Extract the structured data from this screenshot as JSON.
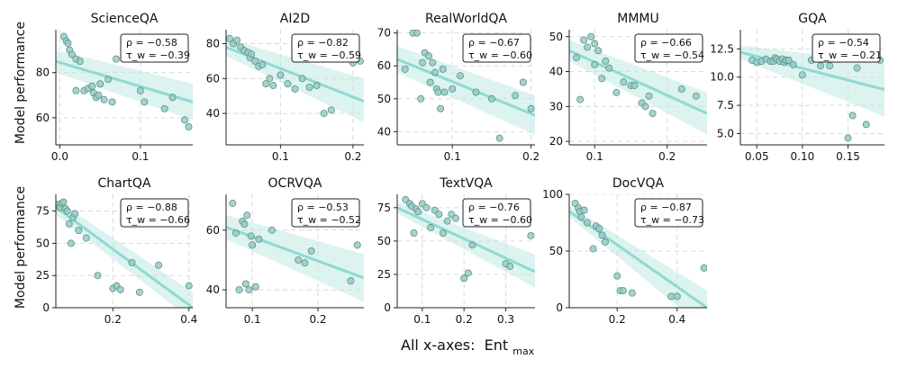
{
  "figure": {
    "xlabel": "All x-axes:",
    "xlabel_main": "Ent",
    "xlabel_sub": "max",
    "ylabel": "Model performance"
  },
  "colors": {
    "line": "#8fdad3",
    "band": "#bfe9e4",
    "point_fill": "#93ccc4",
    "point_edge": "#5f8f89",
    "grid": "#d9d9d9"
  },
  "chart_data": [
    {
      "type": "scatter",
      "title": "ScienceQA",
      "xlim": [
        -0.005,
        0.165
      ],
      "ylim": [
        48,
        99
      ],
      "xticks": [
        0.0,
        0.1
      ],
      "xticklabels": [
        "0.0",
        "0.1"
      ],
      "yticks": [
        60,
        80
      ],
      "yticklabels": [
        "60",
        "80"
      ],
      "rho": "ρ = −0.58",
      "tau": "τ_w = −0.39",
      "fit": [
        85,
        67
      ],
      "band": [
        [
          80,
          90
        ],
        [
          59,
          75
        ]
      ],
      "x": [
        0.005,
        0.008,
        0.01,
        0.012,
        0.015,
        0.02,
        0.025,
        0.03,
        0.035,
        0.04,
        0.042,
        0.045,
        0.048,
        0.05,
        0.055,
        0.06,
        0.065,
        0.07,
        0.02,
        0.1,
        0.105,
        0.13,
        0.14,
        0.155,
        0.16
      ],
      "y": [
        96,
        94,
        93,
        90,
        88,
        86,
        85,
        72,
        73,
        74,
        71,
        69,
        70,
        75,
        68,
        77,
        67,
        86,
        72,
        72,
        67,
        64,
        69,
        59,
        56
      ]
    },
    {
      "type": "scatter",
      "title": "AI2D",
      "xlim": [
        0.025,
        0.215
      ],
      "ylim": [
        22,
        88
      ],
      "xticks": [
        0.1,
        0.2
      ],
      "xticklabels": [
        "0.1",
        "0.2"
      ],
      "yticks": [
        40,
        60,
        80
      ],
      "yticklabels": [
        "40",
        "60",
        "80"
      ],
      "rho": "ρ = −0.82",
      "tau": "τ_w = −0.59",
      "fit": [
        78,
        47
      ],
      "band": [
        [
          73,
          83
        ],
        [
          35,
          60
        ]
      ],
      "x": [
        0.03,
        0.035,
        0.04,
        0.045,
        0.05,
        0.055,
        0.058,
        0.06,
        0.065,
        0.07,
        0.075,
        0.08,
        0.085,
        0.09,
        0.1,
        0.11,
        0.12,
        0.13,
        0.14,
        0.15,
        0.16,
        0.17,
        0.2,
        0.21
      ],
      "y": [
        83,
        80,
        82,
        78,
        76,
        75,
        72,
        74,
        70,
        67,
        68,
        57,
        60,
        56,
        62,
        57,
        54,
        60,
        55,
        56,
        40,
        42,
        69,
        70
      ]
    },
    {
      "type": "scatter",
      "title": "RealWorldQA",
      "xlim": [
        0.03,
        0.205
      ],
      "ylim": [
        36,
        71
      ],
      "xticks": [
        0.1,
        0.2
      ],
      "xticklabels": [
        "0.1",
        "0.2"
      ],
      "yticks": [
        40,
        50,
        60,
        70
      ],
      "yticklabels": [
        "40",
        "50",
        "60",
        "70"
      ],
      "rho": "ρ = −0.67",
      "tau": "τ_w = −0.60",
      "fit": [
        62,
        45
      ],
      "band": [
        [
          58,
          66
        ],
        [
          39,
          51
        ]
      ],
      "x": [
        0.04,
        0.05,
        0.055,
        0.06,
        0.062,
        0.065,
        0.07,
        0.072,
        0.075,
        0.078,
        0.08,
        0.082,
        0.085,
        0.088,
        0.09,
        0.1,
        0.11,
        0.13,
        0.15,
        0.16,
        0.18,
        0.19,
        0.2
      ],
      "y": [
        59,
        70,
        70,
        50,
        61,
        64,
        63,
        55,
        61,
        58,
        53,
        52,
        47,
        59,
        52,
        53,
        57,
        52,
        50,
        38,
        51,
        55,
        47
      ]
    },
    {
      "type": "scatter",
      "title": "MMMU",
      "xlim": [
        0.065,
        0.255
      ],
      "ylim": [
        19,
        52
      ],
      "xticks": [
        0.1,
        0.2
      ],
      "xticklabels": [
        "0.1",
        "0.2"
      ],
      "yticks": [
        20,
        30,
        40,
        50
      ],
      "yticklabels": [
        "20",
        "30",
        "40",
        "50"
      ],
      "rho": "ρ = −0.66",
      "tau": "τ_w = −0.54",
      "fit": [
        46,
        28
      ],
      "band": [
        [
          43,
          49
        ],
        [
          22,
          34
        ]
      ],
      "x": [
        0.075,
        0.08,
        0.085,
        0.09,
        0.095,
        0.1,
        0.1,
        0.105,
        0.11,
        0.115,
        0.12,
        0.13,
        0.14,
        0.15,
        0.155,
        0.16,
        0.165,
        0.17,
        0.175,
        0.18,
        0.2,
        0.22,
        0.24
      ],
      "y": [
        44,
        32,
        49,
        47,
        50,
        48,
        42,
        46,
        38,
        43,
        41,
        34,
        37,
        36,
        36,
        44,
        31,
        30,
        33,
        28,
        44,
        35,
        33
      ]
    },
    {
      "type": "scatter",
      "title": "GQA",
      "xlim": [
        0.032,
        0.19
      ],
      "ylim": [
        4,
        14.2
      ],
      "xticks": [
        0.05,
        0.1,
        0.15
      ],
      "xticklabels": [
        "0.05",
        "0.10",
        "0.15"
      ],
      "yticks": [
        5.0,
        7.5,
        10.0,
        12.5
      ],
      "yticklabels": [
        "5.0",
        "7.5",
        "10.0",
        "12.5"
      ],
      "rho": "ρ = −0.54",
      "tau": "τ_w = −0.21",
      "fit": [
        12.2,
        8.9
      ],
      "band": [
        [
          11.6,
          12.8
        ],
        [
          6.5,
          11.3
        ]
      ],
      "x": [
        0.045,
        0.05,
        0.055,
        0.06,
        0.065,
        0.068,
        0.07,
        0.072,
        0.075,
        0.078,
        0.08,
        0.082,
        0.085,
        0.09,
        0.1,
        0.11,
        0.12,
        0.13,
        0.14,
        0.15,
        0.155,
        0.16,
        0.17,
        0.18,
        0.185
      ],
      "y": [
        11.5,
        11.3,
        11.4,
        11.6,
        11.4,
        11.4,
        11.7,
        11.6,
        11.4,
        11.6,
        11.3,
        11.5,
        11.5,
        11.1,
        10.2,
        11.5,
        11.0,
        11.0,
        12.3,
        4.6,
        6.6,
        10.8,
        5.8,
        11.6,
        11.5
      ]
    },
    {
      "type": "scatter",
      "title": "ChartQA",
      "xlim": [
        0.05,
        0.41
      ],
      "ylim": [
        0,
        88
      ],
      "xticks": [
        0.2,
        0.4
      ],
      "xticklabels": [
        "0.2",
        "0.4"
      ],
      "yticks": [
        0,
        25,
        50,
        75
      ],
      "yticklabels": [
        "0",
        "25",
        "50",
        "75"
      ],
      "rho": "ρ = −0.88",
      "tau": "τ_w = −0.66",
      "fit": [
        78,
        0
      ],
      "band": [
        [
          72,
          84
        ],
        [
          -10,
          12
        ]
      ],
      "x": [
        0.055,
        0.06,
        0.065,
        0.07,
        0.075,
        0.08,
        0.085,
        0.09,
        0.095,
        0.1,
        0.11,
        0.13,
        0.16,
        0.2,
        0.21,
        0.22,
        0.25,
        0.27,
        0.32,
        0.4
      ],
      "y": [
        80,
        78,
        81,
        82,
        77,
        75,
        65,
        50,
        70,
        73,
        60,
        54,
        25,
        15,
        17,
        14,
        35,
        12,
        33,
        17
      ]
    },
    {
      "type": "scatter",
      "title": "OCRVQA",
      "xlim": [
        0.06,
        0.27
      ],
      "ylim": [
        34,
        72
      ],
      "xticks": [
        0.1,
        0.2
      ],
      "xticklabels": [
        "0.1",
        "0.2"
      ],
      "yticks": [
        40,
        60
      ],
      "yticklabels": [
        "40",
        "60"
      ],
      "rho": "ρ = −0.53",
      "tau": "τ_w = −0.52",
      "fit": [
        61,
        44
      ],
      "band": [
        [
          57,
          65
        ],
        [
          36,
          52
        ]
      ],
      "x": [
        0.07,
        0.075,
        0.08,
        0.085,
        0.088,
        0.09,
        0.092,
        0.095,
        0.098,
        0.1,
        0.105,
        0.11,
        0.13,
        0.17,
        0.18,
        0.19,
        0.25,
        0.26
      ],
      "y": [
        69,
        59,
        40,
        63,
        62,
        42,
        65,
        40,
        58,
        55,
        41,
        57,
        60,
        50,
        49,
        53,
        43,
        55
      ]
    },
    {
      "type": "scatter",
      "title": "TextVQA",
      "xlim": [
        0.04,
        0.37
      ],
      "ylim": [
        0,
        85
      ],
      "xticks": [
        0.1,
        0.2,
        0.3
      ],
      "xticklabels": [
        "0.1",
        "0.2",
        "0.3"
      ],
      "yticks": [
        0,
        25,
        50,
        75
      ],
      "yticklabels": [
        "0",
        "25",
        "50",
        "75"
      ],
      "rho": "ρ = −0.76",
      "tau": "τ_w = −0.60",
      "fit": [
        75,
        27
      ],
      "band": [
        [
          71,
          79
        ],
        [
          15,
          40
        ]
      ],
      "x": [
        0.06,
        0.07,
        0.075,
        0.08,
        0.085,
        0.09,
        0.1,
        0.11,
        0.12,
        0.13,
        0.14,
        0.15,
        0.16,
        0.17,
        0.18,
        0.2,
        0.21,
        0.22,
        0.3,
        0.31,
        0.36
      ],
      "y": [
        81,
        78,
        76,
        56,
        74,
        72,
        78,
        75,
        60,
        73,
        70,
        56,
        65,
        70,
        67,
        22,
        26,
        47,
        33,
        31,
        54
      ]
    },
    {
      "type": "scatter",
      "title": "DocVQA",
      "xlim": [
        0.04,
        0.5
      ],
      "ylim": [
        0,
        100
      ],
      "xticks": [
        0.2,
        0.4
      ],
      "xticklabels": [
        "0.2",
        "0.4"
      ],
      "yticks": [
        0,
        50,
        100
      ],
      "yticklabels": [
        "0",
        "50",
        "100"
      ],
      "rho": "ρ = −0.87",
      "tau": "τ_w = −0.73",
      "fit": [
        85,
        0
      ],
      "band": [
        [
          80,
          90
        ],
        [
          -20,
          15
        ]
      ],
      "x": [
        0.06,
        0.07,
        0.075,
        0.08,
        0.09,
        0.1,
        0.12,
        0.13,
        0.14,
        0.15,
        0.16,
        0.2,
        0.21,
        0.22,
        0.25,
        0.38,
        0.4,
        0.49
      ],
      "y": [
        92,
        88,
        85,
        80,
        86,
        75,
        52,
        72,
        70,
        64,
        58,
        28,
        15,
        15,
        13,
        10,
        10,
        35
      ]
    }
  ]
}
